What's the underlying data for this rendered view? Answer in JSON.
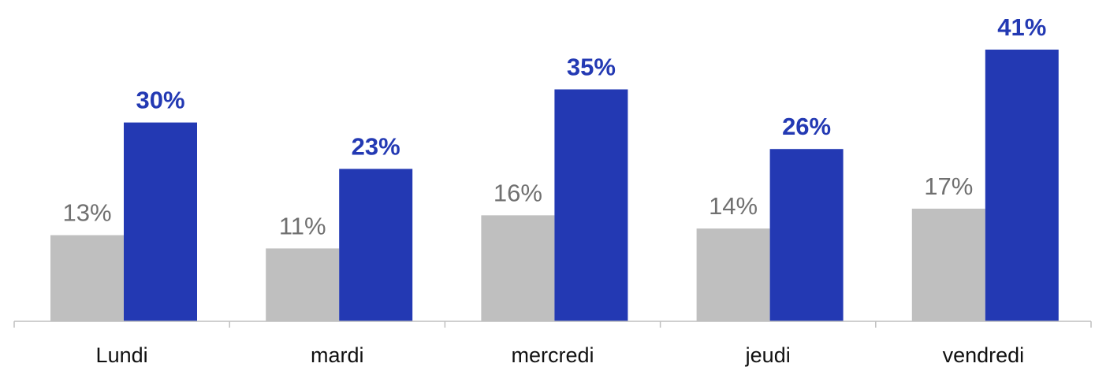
{
  "chart_data": {
    "type": "bar",
    "categories": [
      "Lundi",
      "mardi",
      "mercredi",
      "jeudi",
      "vendredi"
    ],
    "series": [
      {
        "values": [
          13,
          11,
          16,
          14,
          17
        ],
        "color": "#BFBFBF",
        "label_color": "#707070",
        "labels": [
          "13%",
          "11%",
          "16%",
          "14%",
          "17%"
        ]
      },
      {
        "values": [
          30,
          23,
          35,
          26,
          41
        ],
        "color": "#2339B3",
        "label_color": "#2339B3",
        "labels": [
          "30%",
          "23%",
          "35%",
          "26%",
          "41%"
        ]
      }
    ],
    "ylim": [
      0,
      41
    ],
    "grid": false,
    "legend": "none"
  }
}
